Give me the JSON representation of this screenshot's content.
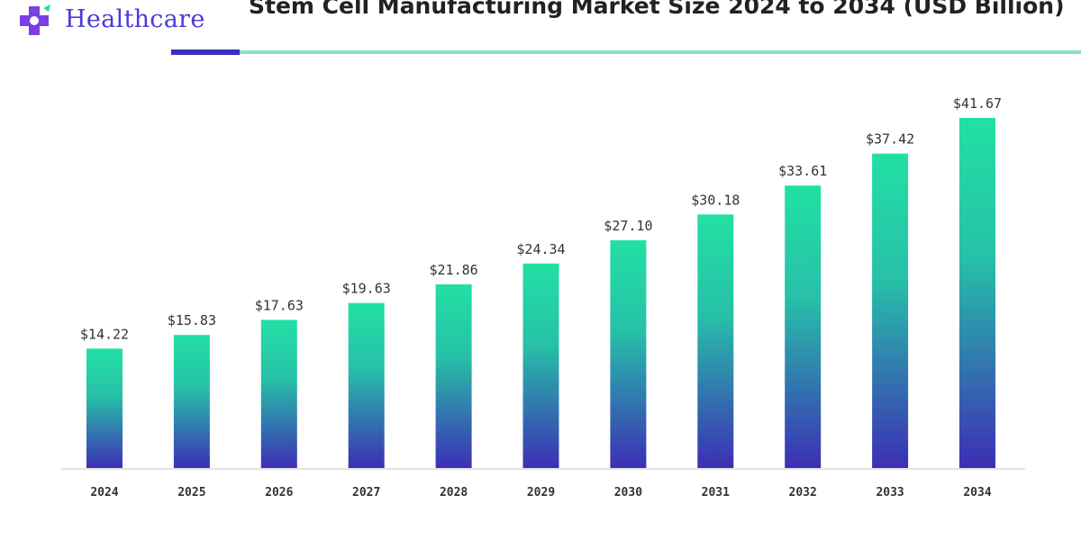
{
  "brand": {
    "name": "Healthcare",
    "mark_color": "#7b3fe4",
    "text_color": "#4a3ad8"
  },
  "header": {
    "title": "Stem Cell Manufacturing Market Size 2024 to 2034 (USD Billion)"
  },
  "colors": {
    "bar_top": "#22e0a4",
    "bar_bottom": "#3c2fb5",
    "rule_dark": "#3a2fb8",
    "rule_light": "#86e3c6"
  },
  "chart_data": {
    "type": "bar",
    "title": "Stem Cell Manufacturing Market Size 2024 to 2034 (USD Billion)",
    "categories": [
      "2024",
      "2025",
      "2026",
      "2027",
      "2028",
      "2029",
      "2030",
      "2031",
      "2032",
      "2033",
      "2034"
    ],
    "values": [
      14.22,
      15.83,
      17.63,
      19.63,
      21.86,
      24.34,
      27.1,
      30.18,
      33.61,
      37.42,
      41.67
    ],
    "value_labels": [
      "$14.22",
      "$15.83",
      "$17.63",
      "$19.63",
      "$21.86",
      "$24.34",
      "$27.10",
      "$30.18",
      "$33.61",
      "$37.42",
      "$41.67"
    ],
    "xlabel": "",
    "ylabel": "",
    "ylim": [
      0,
      41.67
    ],
    "grid": false,
    "legend": "none"
  }
}
